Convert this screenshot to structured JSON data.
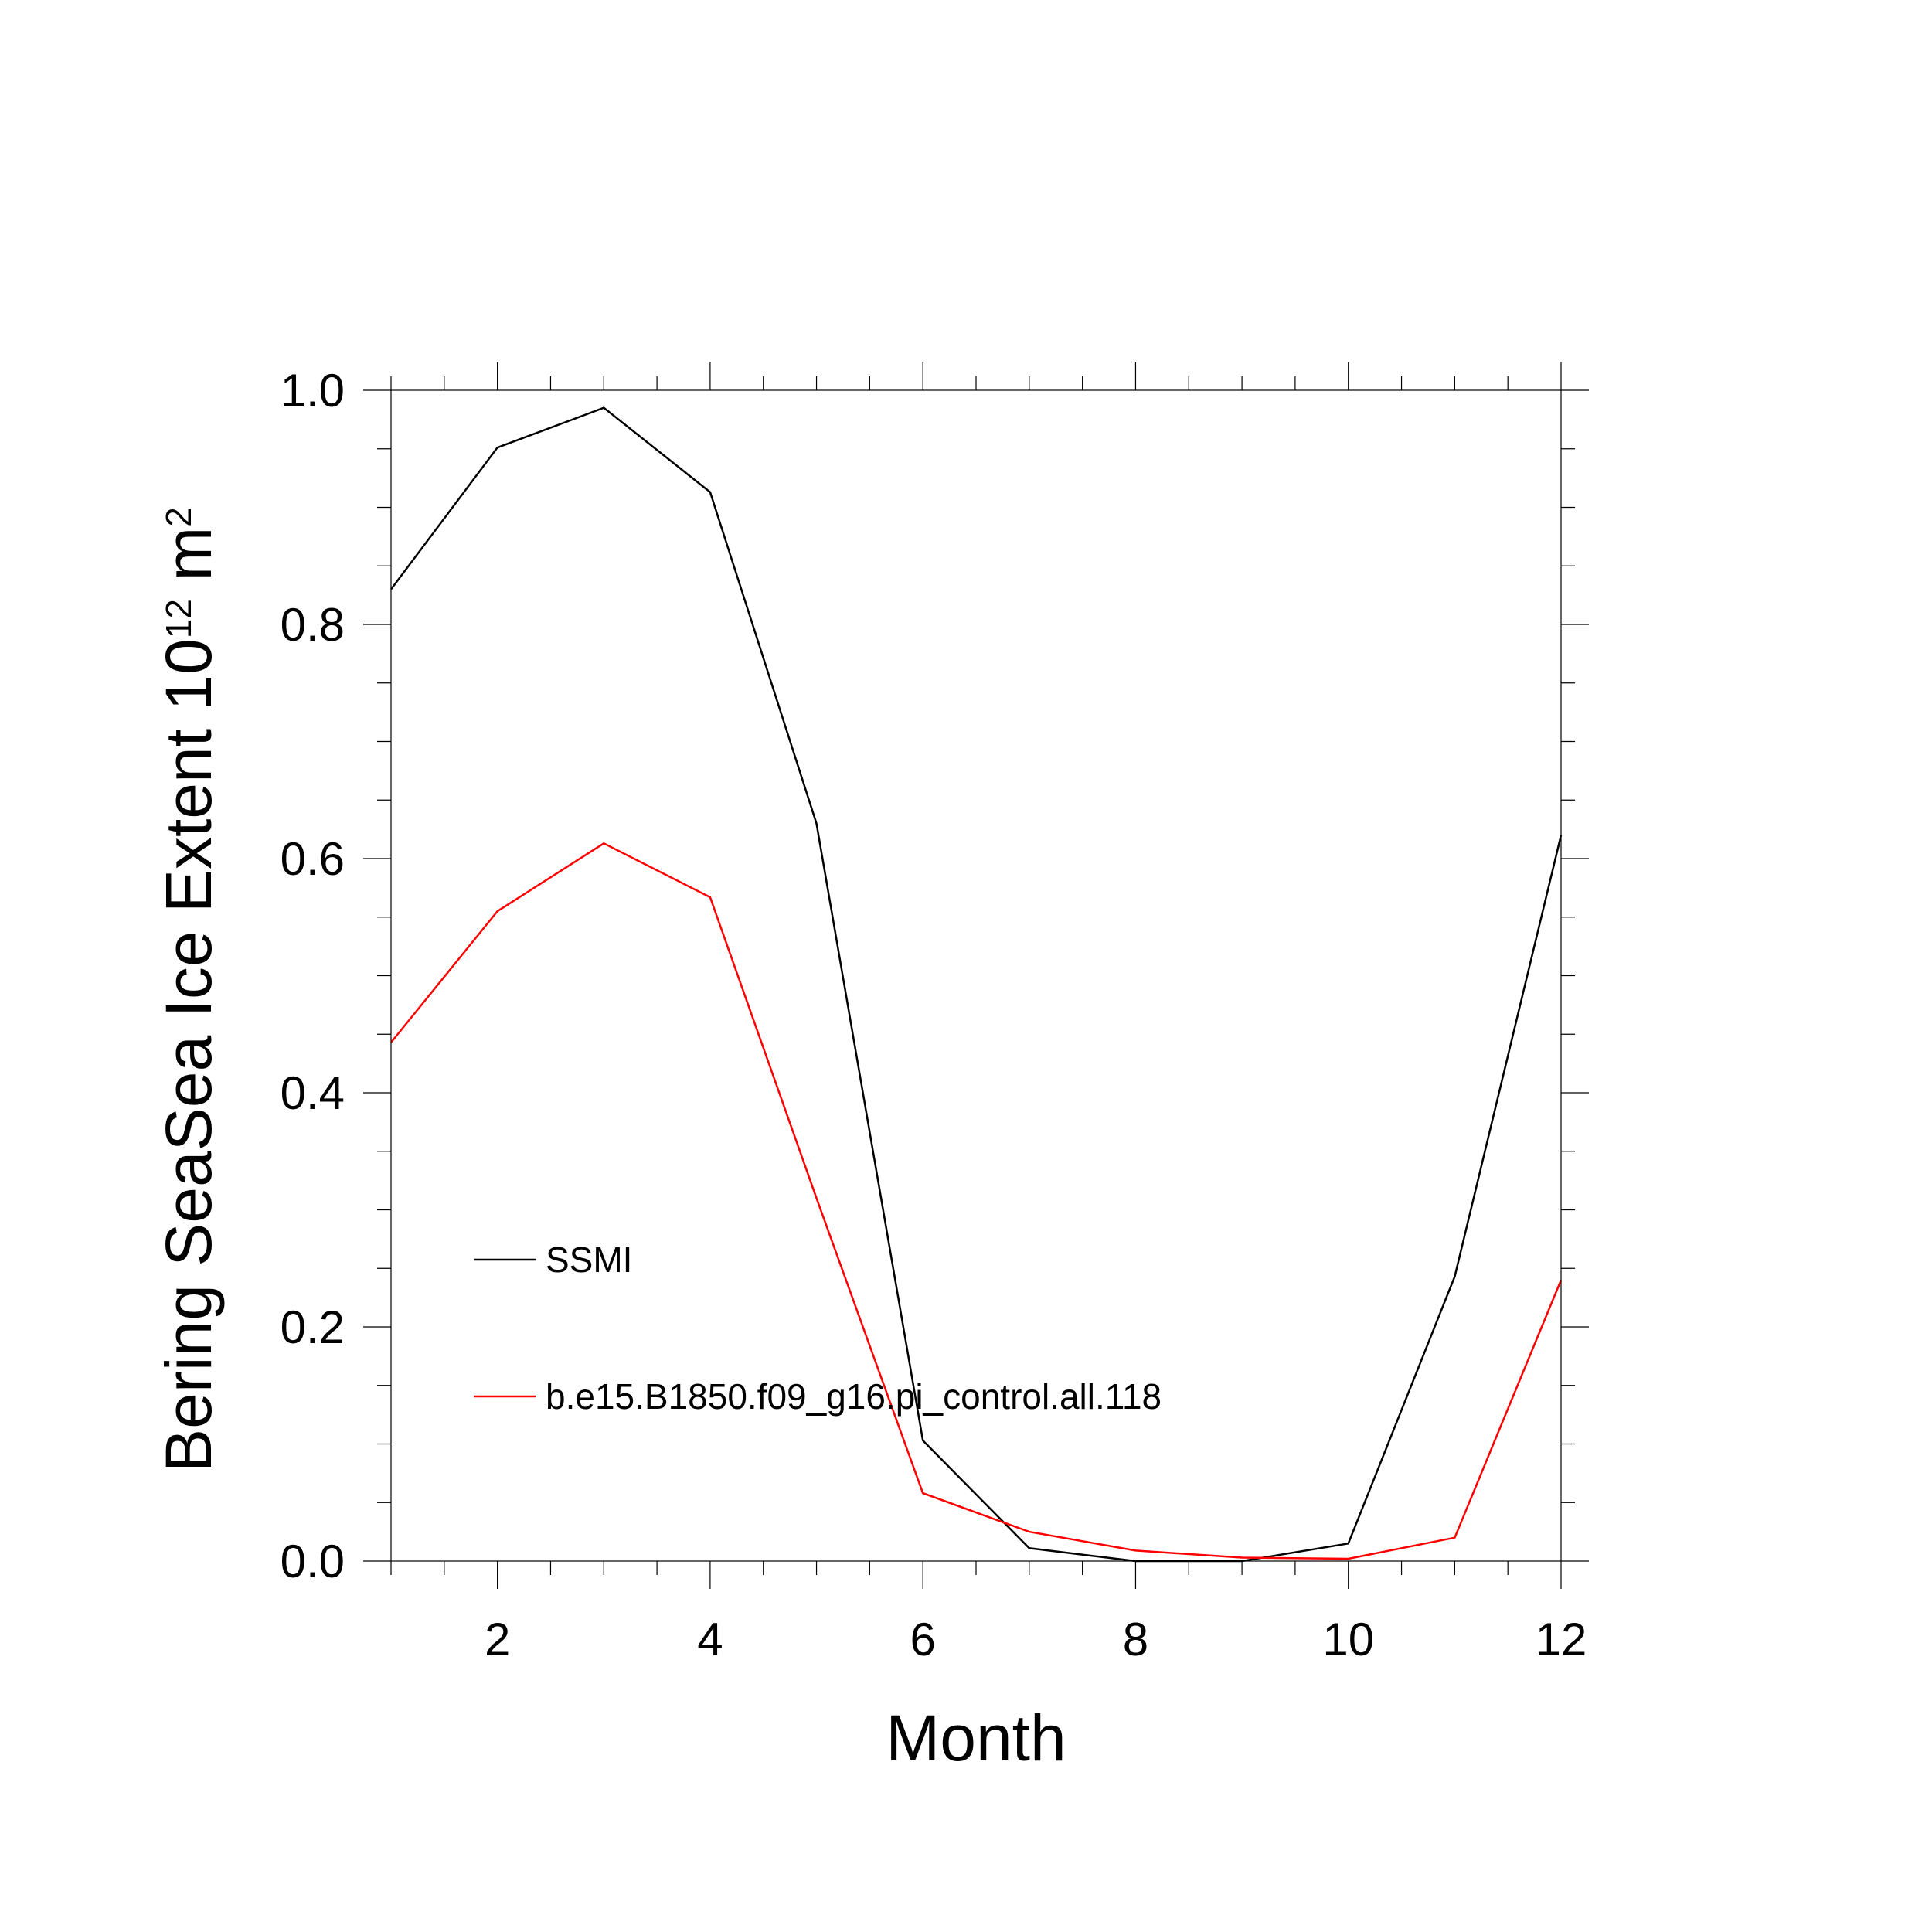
{
  "chart_data": {
    "type": "line",
    "title": "",
    "xlabel": "Month",
    "ylabel": {
      "text": "Bering SeaSea Ice Extent 10",
      "superscript": "12",
      "unit": " m",
      "unit_superscript": "2"
    },
    "xlim": [
      1,
      12
    ],
    "ylim": [
      0.0,
      1.0
    ],
    "x_ticks": [
      2,
      4,
      6,
      8,
      10,
      12
    ],
    "x_tick_labels": [
      "2",
      "4",
      "6",
      "8",
      "10",
      "12"
    ],
    "y_ticks": [
      0.0,
      0.2,
      0.4,
      0.6,
      0.8,
      1.0
    ],
    "y_tick_labels": [
      "0.0",
      "0.2",
      "0.4",
      "0.6",
      "0.8",
      "1.0"
    ],
    "grid": false,
    "legend_position": "lower-left inside",
    "x": [
      1,
      2,
      3,
      4,
      5,
      6,
      7,
      8,
      9,
      10,
      11,
      12
    ],
    "series": [
      {
        "name": "SSMI",
        "color": "#000000",
        "values": [
          0.83,
          0.951,
          0.985,
          0.913,
          0.63,
          0.103,
          0.011,
          0.0,
          0.0,
          0.015,
          0.243,
          0.62
        ]
      },
      {
        "name": "b.e15.B1850.f09_g16.pi_control.all.118",
        "color": "#ff0000",
        "values": [
          0.443,
          0.555,
          0.613,
          0.567,
          0.31,
          0.058,
          0.025,
          0.009,
          0.003,
          0.002,
          0.02,
          0.24
        ]
      }
    ]
  }
}
